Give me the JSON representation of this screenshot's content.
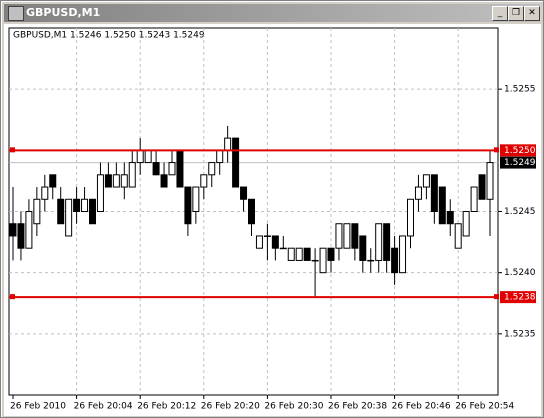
{
  "window": {
    "title": "GBPUSD,M1"
  },
  "chart_data": {
    "type": "candlestick",
    "title": "GBPUSD,M1  1.5246 1.5250 1.5243 1.5249",
    "categories": [
      "26 Feb 2010",
      null,
      null,
      null,
      null,
      null,
      null,
      null,
      "26 Feb 20:04",
      null,
      null,
      null,
      null,
      null,
      null,
      null,
      "26 Feb 20:12",
      null,
      null,
      null,
      null,
      null,
      null,
      null,
      "26 Feb 20:20",
      null,
      null,
      null,
      null,
      null,
      null,
      null,
      "26 Feb 20:30",
      null,
      null,
      null,
      null,
      null,
      null,
      null,
      "26 Feb 20:38",
      null,
      null,
      null,
      null,
      null,
      null,
      null,
      "26 Feb 20:46",
      null,
      null,
      null,
      null,
      null,
      null,
      null,
      "26 Feb 20:54",
      null,
      null,
      null,
      null
    ],
    "open": [
      1.5244,
      1.5244,
      1.5242,
      1.5244,
      1.5246,
      1.5248,
      1.5246,
      1.5243,
      1.5246,
      1.5245,
      1.5246,
      1.5245,
      1.5248,
      1.5247,
      1.5247,
      1.5247,
      1.5249,
      1.5249,
      1.5249,
      1.5248,
      1.5248,
      1.525,
      1.5247,
      1.5245,
      1.5247,
      1.5248,
      1.5249,
      1.525,
      1.5251,
      1.5247,
      1.5246,
      1.5242,
      1.5243,
      1.5243,
      1.5242,
      1.5241,
      1.5241,
      1.5242,
      1.5241,
      1.524,
      1.5242,
      1.5242,
      1.5242,
      1.5244,
      1.5243,
      1.5241,
      1.5241,
      1.5244,
      1.5242,
      1.524,
      1.5243,
      1.5246,
      1.5247,
      1.5248,
      1.5247,
      1.5245,
      1.5242,
      1.5243,
      1.5245,
      1.5248,
      1.5246
    ],
    "high": [
      1.5247,
      1.5245,
      1.5246,
      1.5247,
      1.5248,
      1.5248,
      1.5247,
      1.5246,
      1.5247,
      1.5247,
      1.5246,
      1.5249,
      1.5249,
      1.5249,
      1.5249,
      1.525,
      1.5251,
      1.525,
      1.525,
      1.5249,
      1.525,
      1.525,
      1.5247,
      1.5247,
      1.5248,
      1.5249,
      1.525,
      1.5252,
      1.5251,
      1.5247,
      1.5246,
      1.5243,
      1.5244,
      1.5243,
      1.5243,
      1.5242,
      1.5242,
      1.5242,
      1.5242,
      1.5242,
      1.5242,
      1.5244,
      1.5244,
      1.5244,
      1.5243,
      1.5242,
      1.5244,
      1.5244,
      1.5243,
      1.5243,
      1.5246,
      1.5248,
      1.5248,
      1.5248,
      1.5247,
      1.5246,
      1.5244,
      1.5245,
      1.5247,
      1.5248,
      1.525
    ],
    "low": [
      1.5241,
      1.5241,
      1.5242,
      1.5243,
      1.5245,
      1.5246,
      1.5244,
      1.5243,
      1.5244,
      1.5245,
      1.5244,
      1.5245,
      1.5247,
      1.5247,
      1.5246,
      1.5247,
      1.5248,
      1.5249,
      1.5248,
      1.5247,
      1.5248,
      1.5247,
      1.5243,
      1.5244,
      1.5246,
      1.5247,
      1.5248,
      1.5249,
      1.5247,
      1.5245,
      1.5243,
      1.5242,
      1.5241,
      1.5241,
      1.5242,
      1.5241,
      1.5241,
      1.5241,
      1.5238,
      1.524,
      1.524,
      1.5241,
      1.5242,
      1.5241,
      1.524,
      1.524,
      1.524,
      1.524,
      1.5239,
      1.524,
      1.5242,
      1.5245,
      1.5246,
      1.5244,
      1.5244,
      1.5243,
      1.5242,
      1.5243,
      1.5245,
      1.5246,
      1.5243
    ],
    "close": [
      1.5243,
      1.5242,
      1.5245,
      1.5246,
      1.5247,
      1.5247,
      1.5244,
      1.5246,
      1.5245,
      1.5246,
      1.5244,
      1.5248,
      1.5247,
      1.5248,
      1.5248,
      1.5249,
      1.525,
      1.525,
      1.5248,
      1.5247,
      1.5249,
      1.5247,
      1.5244,
      1.5247,
      1.5248,
      1.5249,
      1.525,
      1.5251,
      1.5247,
      1.5246,
      1.5244,
      1.5243,
      1.5243,
      1.5242,
      1.5242,
      1.5242,
      1.5242,
      1.5241,
      1.5241,
      1.5242,
      1.5241,
      1.5244,
      1.5244,
      1.5242,
      1.5241,
      1.5241,
      1.5244,
      1.5241,
      1.524,
      1.5243,
      1.5246,
      1.5247,
      1.5248,
      1.5245,
      1.5244,
      1.5244,
      1.5244,
      1.5245,
      1.5247,
      1.5246,
      1.5249
    ],
    "ylim": [
      1.523,
      1.526
    ],
    "yticks": [
      1.5235,
      {
        "value": 1.524,
        "label": "1.5240"
      },
      1.5245,
      1.5255
    ],
    "grid": true,
    "hlines": [
      {
        "value": 1.525,
        "label": "1.5250",
        "color": "#e00000"
      },
      {
        "value": 1.5238,
        "label": "1.5238",
        "color": "#e00000"
      }
    ],
    "last_price": {
      "value": 1.5249,
      "label": "1.5249"
    }
  }
}
